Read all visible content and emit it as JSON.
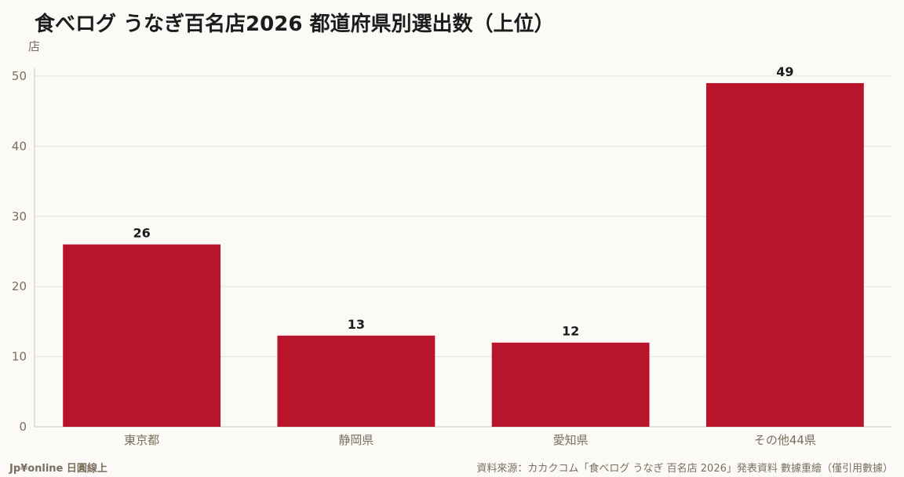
{
  "title": "食べログ うなぎ百名店2026 都道府県別選出数（上位）",
  "footer": {
    "brand": "Jp¥online 日圓線上",
    "source": "資料來源：カカクコム「食べログ うなぎ 百名店 2026」発表資料 數據重繪（僅引用數據）"
  },
  "colors": {
    "bar": "#b8142c",
    "grid": "#e6e1d8",
    "axis_text": "#7a6f5e",
    "label": "#1c1c1c"
  },
  "chart_data": {
    "type": "bar",
    "title": "食べログ うなぎ百名店2026 都道府県別選出数（上位）",
    "ylabel": "店",
    "xlabel": "",
    "categories": [
      "東京都",
      "静岡県",
      "愛知県",
      "その他44県"
    ],
    "values": [
      26,
      13,
      12,
      49
    ],
    "ylim": [
      0,
      50
    ],
    "yticks": [
      0,
      10,
      20,
      30,
      40,
      50
    ],
    "grid": true,
    "data_labels": true
  }
}
